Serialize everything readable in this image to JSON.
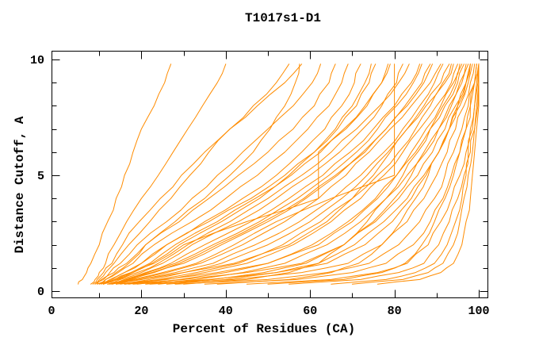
{
  "window": {
    "background": "#ffffff",
    "text_color": "#000000"
  },
  "chart_data": {
    "type": "line",
    "title": "T1017s1-D1",
    "xlabel": "Percent of Residues (CA)",
    "ylabel": "Distance Cutoff, A",
    "xlim": [
      0,
      102
    ],
    "ylim": [
      0,
      10.4
    ],
    "x_major_ticks": [
      0,
      20,
      40,
      60,
      80,
      100
    ],
    "x_minor_ticks": [
      10,
      30,
      50,
      70,
      90
    ],
    "y_major_ticks": [
      0,
      5,
      10
    ],
    "y_minor_ticks": [
      1,
      2,
      3,
      4,
      6,
      7,
      8,
      9
    ],
    "grid": false,
    "legend": "none",
    "line_color": "#ff8c00",
    "axis_color": "#000000",
    "y_samples": [
      0.3,
      0.5,
      0.8,
      1.2,
      2,
      3,
      4,
      5,
      6,
      7,
      8,
      9,
      9.8
    ],
    "series": [
      [
        5,
        6,
        7,
        8,
        10,
        12,
        14,
        16,
        18,
        20,
        23,
        25.5,
        27
      ],
      [
        8,
        9,
        10,
        11.5,
        13.5,
        16.5,
        20,
        24,
        27.5,
        31,
        34.5,
        38,
        40
      ],
      [
        9,
        10,
        11.5,
        13.5,
        17,
        22,
        27,
        31.5,
        36,
        41,
        46.5,
        52,
        55
      ],
      [
        8.5,
        9.5,
        11,
        13,
        15.5,
        19.5,
        24.5,
        29.5,
        35,
        41,
        47.5,
        54,
        58
      ],
      [
        9,
        10.5,
        12.5,
        15,
        19,
        26,
        32,
        38,
        44,
        50,
        56,
        60.5,
        62.5
      ],
      [
        10,
        11.5,
        14,
        17,
        21,
        29,
        36,
        43,
        50,
        56,
        61,
        64.5,
        66
      ],
      [
        9.5,
        11.5,
        14.5,
        18,
        23,
        32,
        40,
        47.5,
        54,
        59.5,
        64.5,
        67.5,
        69
      ],
      [
        10,
        12.5,
        16,
        20,
        26,
        35,
        44,
        52,
        58,
        63.5,
        67.5,
        70.5,
        72
      ],
      [
        11,
        14,
        18,
        22.5,
        29,
        39,
        48,
        55,
        61,
        66,
        70,
        73,
        74.5
      ],
      [
        10.5,
        13.5,
        17.5,
        22,
        28,
        38,
        47,
        55.5,
        62.5,
        68.5,
        73.5,
        77,
        78.5
      ],
      [
        12,
        15,
        20,
        25,
        32,
        43,
        52,
        60,
        67,
        72.5,
        77,
        80.5,
        82
      ],
      [
        11,
        14.5,
        19,
        24,
        31,
        41,
        50,
        58,
        65,
        71,
        76.5,
        81,
        83.5
      ],
      [
        12,
        16,
        21,
        27,
        35,
        46,
        55,
        63,
        69.5,
        75,
        80,
        84,
        86
      ],
      [
        13,
        17.5,
        23,
        30,
        39,
        50,
        59,
        66.5,
        73,
        78,
        82.5,
        86.5,
        88.5
      ],
      [
        12.5,
        17,
        22.5,
        29,
        38,
        49,
        58.5,
        66,
        72.5,
        78,
        83,
        87,
        89
      ],
      [
        13,
        18,
        25,
        33,
        42,
        52,
        65,
        80,
        80,
        80,
        80,
        80,
        80
      ],
      [
        11,
        14,
        18,
        23,
        30,
        45,
        62,
        62,
        62,
        68,
        73,
        77,
        79
      ],
      [
        12,
        20,
        30,
        42,
        55,
        64,
        70,
        75,
        79,
        83,
        87,
        91,
        93
      ],
      [
        14,
        25,
        38,
        50,
        62,
        70,
        76,
        80.5,
        84,
        87.5,
        91,
        94,
        95.5
      ],
      [
        16,
        30,
        45,
        58,
        68,
        75,
        80,
        84,
        87.5,
        90.5,
        93,
        95.5,
        97
      ],
      [
        18,
        36,
        52,
        64,
        73,
        79.5,
        84,
        87.5,
        90.5,
        93,
        95,
        97,
        98
      ],
      [
        22,
        42,
        58,
        69,
        77,
        83,
        87,
        90,
        92.5,
        94.5,
        96.5,
        98,
        99
      ],
      [
        28,
        50,
        64,
        74,
        81,
        86,
        89.5,
        92,
        94,
        96,
        97.5,
        99,
        99.5
      ],
      [
        35,
        57,
        70,
        78,
        84.5,
        88.5,
        91.5,
        93.5,
        95.5,
        97,
        98,
        99,
        100
      ],
      [
        45,
        65,
        76,
        83,
        88,
        91,
        93.5,
        95.5,
        97,
        98,
        99,
        99.5,
        100
      ],
      [
        55,
        72,
        81,
        87,
        90.5,
        93,
        95,
        96.5,
        97.5,
        98.5,
        99,
        99.8,
        100
      ],
      [
        65,
        78,
        85,
        89.5,
        92.5,
        94.5,
        96,
        97,
        98,
        99,
        99.5,
        100,
        100
      ],
      [
        70,
        82,
        88,
        91.5,
        94,
        95.5,
        96.5,
        97.5,
        98.5,
        99,
        99.8,
        100,
        100
      ],
      [
        76,
        86,
        91,
        94,
        96,
        97,
        98,
        98.5,
        99,
        99.5,
        100,
        100,
        100
      ],
      [
        13,
        19,
        26,
        34,
        44,
        54,
        62,
        68.5,
        74,
        79,
        84,
        88.5,
        91
      ],
      [
        15,
        22,
        30,
        39,
        50,
        60,
        67.5,
        73.5,
        78.5,
        83,
        87.5,
        91.5,
        93.5
      ],
      [
        17,
        26,
        35,
        45,
        56,
        65,
        72,
        77.5,
        82,
        86,
        90,
        93.5,
        95
      ],
      [
        19,
        29,
        40,
        50,
        60.5,
        69,
        75.5,
        80.5,
        85,
        88.5,
        92,
        95,
        96.5
      ],
      [
        21,
        33,
        44,
        54,
        64,
        72,
        78,
        83,
        87,
        90.5,
        93.5,
        96,
        97.5
      ],
      [
        24,
        37,
        49,
        59,
        68,
        75.5,
        81,
        85.5,
        89,
        92,
        94.5,
        97,
        98
      ],
      [
        26,
        40,
        52,
        62,
        70.5,
        77.5,
        83,
        87,
        90.5,
        93,
        95.5,
        97.5,
        98.5
      ],
      [
        9.5,
        11,
        13.5,
        16.5,
        21,
        28,
        35,
        41,
        46.5,
        50.5,
        54,
        56.5,
        57.5
      ],
      [
        11,
        13,
        16,
        20,
        26,
        36,
        46,
        54,
        61,
        66.5,
        71,
        74,
        75.5
      ],
      [
        12.5,
        16.5,
        21.5,
        28,
        37,
        48,
        57,
        64.5,
        71,
        76,
        80.5,
        84.5,
        86.5
      ],
      [
        14,
        20,
        28,
        37,
        47,
        57.5,
        65.5,
        72,
        77.5,
        82,
        86,
        89.5,
        91.5
      ],
      [
        16,
        24,
        33,
        43,
        53.5,
        62.5,
        70,
        76,
        81,
        85,
        88.5,
        92,
        94
      ],
      [
        30,
        45,
        55,
        62,
        68,
        73.5,
        78,
        82,
        85.5,
        88.5,
        91.5,
        94.5,
        96
      ],
      [
        38,
        55,
        65,
        71.5,
        77,
        81.5,
        85,
        88,
        90.5,
        93,
        95,
        97,
        98
      ],
      [
        50,
        68,
        77,
        82.5,
        86.5,
        89.5,
        92,
        94,
        95.5,
        97,
        98,
        99,
        99.5
      ]
    ]
  }
}
